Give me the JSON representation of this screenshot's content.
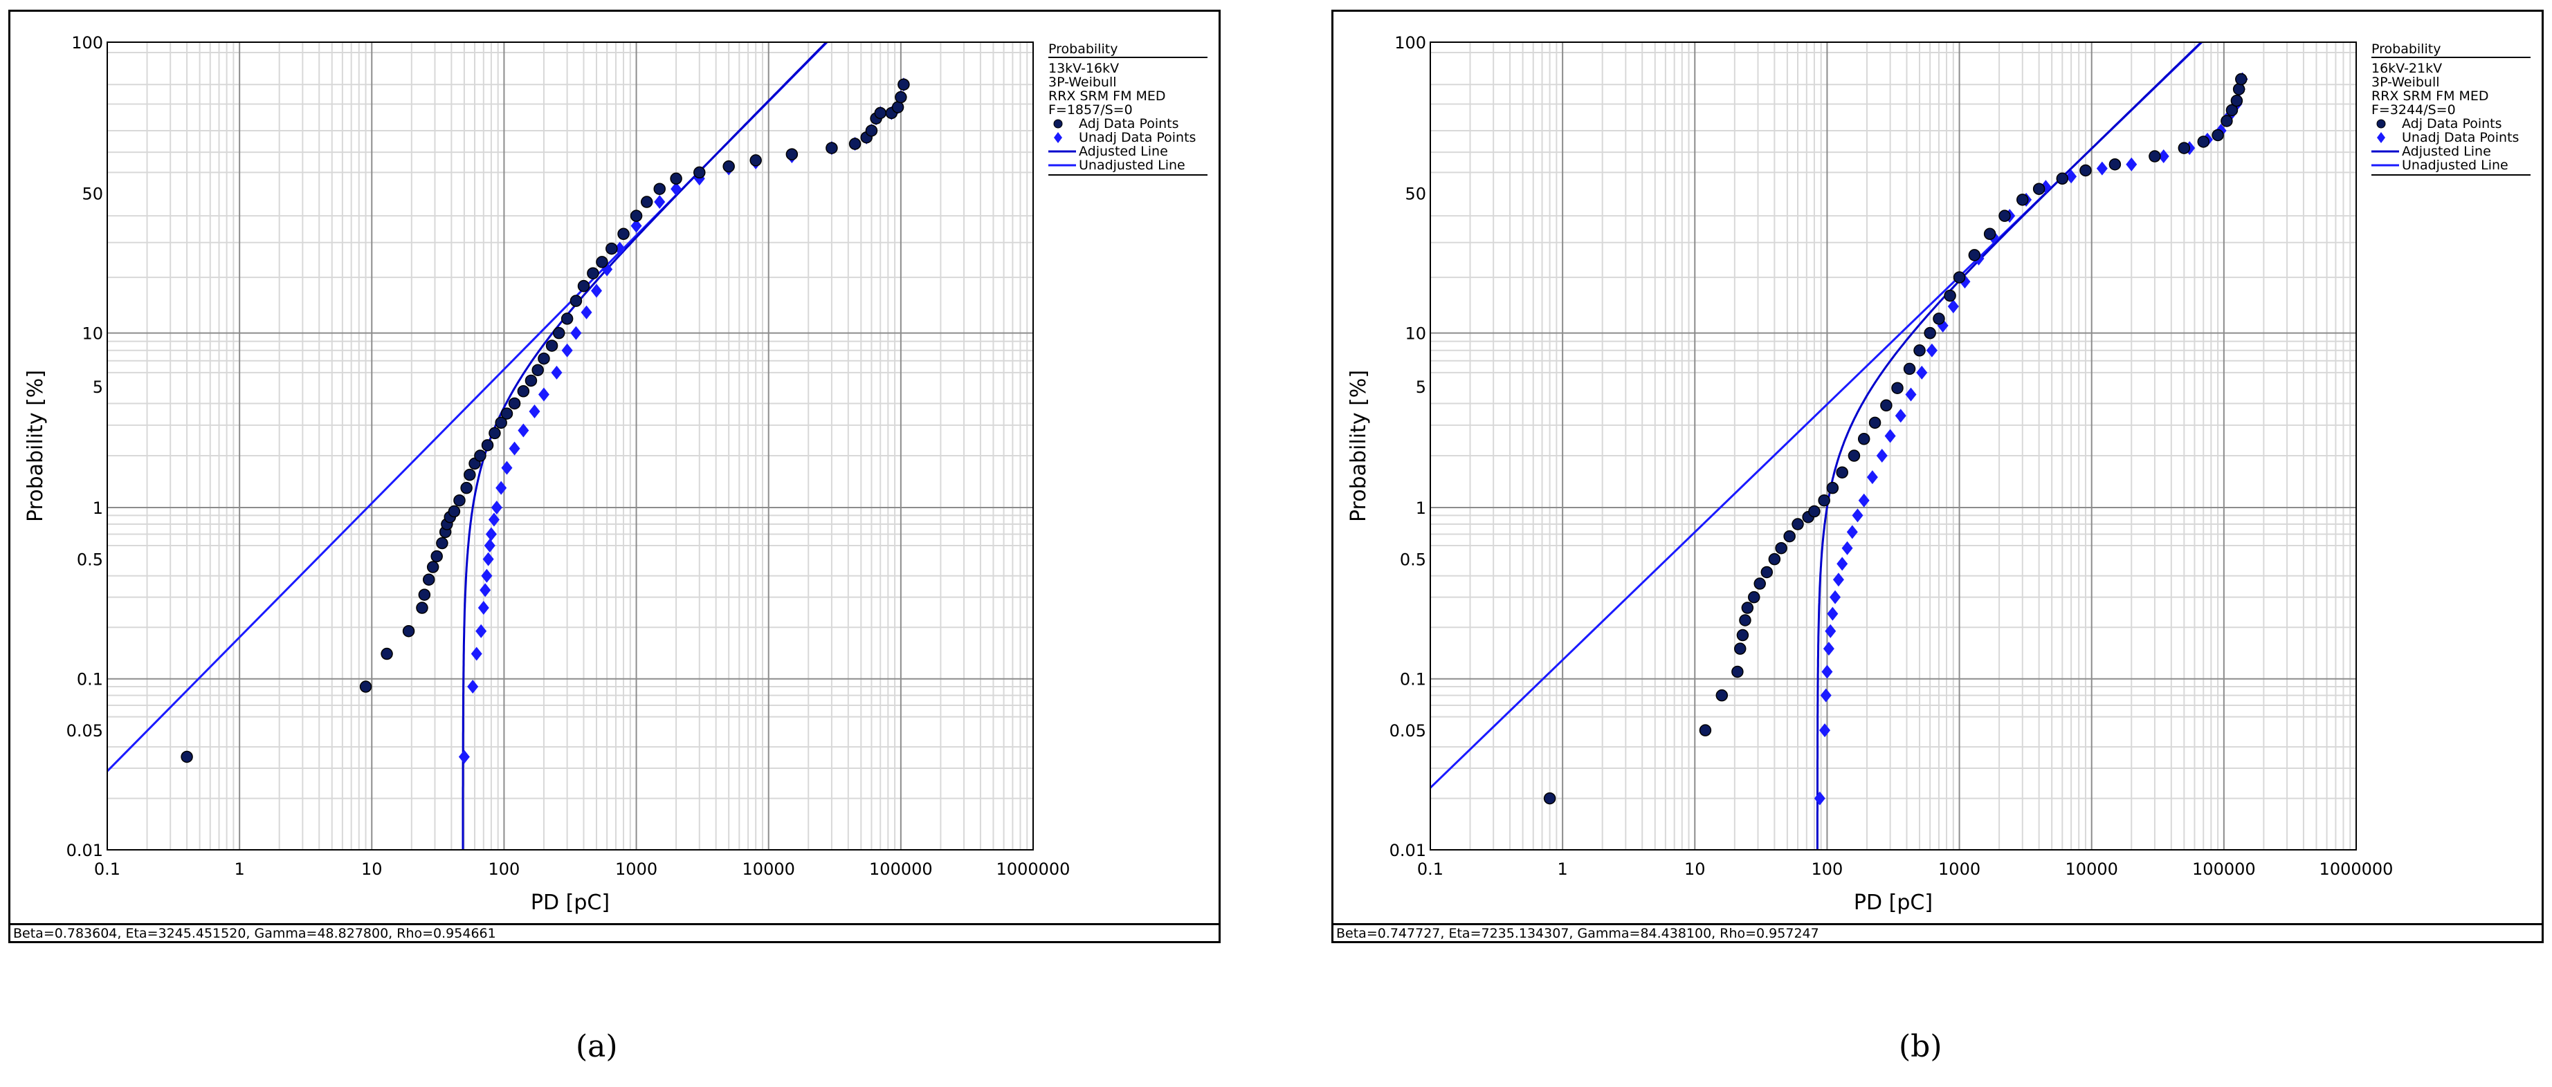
{
  "chart_data": [
    {
      "type": "scatter",
      "panel_caption": "(a)",
      "xlabel": "PD [pC]",
      "ylabel": "Probability [%]",
      "x_scale": "log",
      "y_scale": "weibull",
      "xlim": [
        0.1,
        1000000
      ],
      "ylim": [
        0.01,
        100
      ],
      "x_ticks": [
        "0.1",
        "1",
        "10",
        "100",
        "1000",
        "10000",
        "100000",
        "1000000"
      ],
      "y_ticks": [
        "0.01",
        "0.05",
        "0.1",
        "0.5",
        "1",
        "5",
        "10",
        "50",
        "100"
      ],
      "grid": true,
      "legend_position": "right",
      "legend": {
        "title": "Probability",
        "lines": [
          "13kV-16kV",
          "3P-Weibull",
          "RRX SRM FM MED",
          "F=1857/S=0"
        ],
        "entries": [
          "Adj Data Points",
          "Unadj Data Points",
          "Adjusted Line",
          "Unadjusted Line"
        ]
      },
      "params_text": "Beta=0.783604, Eta=3245.451520, Gamma=48.827800, Rho=0.954661",
      "beta": 0.783604,
      "eta": 3245.45152,
      "gamma": 48.8278,
      "series": [
        {
          "name": "Adj Data Points",
          "marker": "circle",
          "points": [
            [
              0.4,
              0.035
            ],
            [
              9,
              0.09
            ],
            [
              13,
              0.14
            ],
            [
              19,
              0.19
            ],
            [
              24,
              0.26
            ],
            [
              25,
              0.31
            ],
            [
              27,
              0.38
            ],
            [
              29,
              0.45
            ],
            [
              31,
              0.52
            ],
            [
              34,
              0.62
            ],
            [
              36,
              0.72
            ],
            [
              37,
              0.8
            ],
            [
              39,
              0.88
            ],
            [
              42,
              0.95
            ],
            [
              46,
              1.1
            ],
            [
              52,
              1.3
            ],
            [
              55,
              1.55
            ],
            [
              60,
              1.8
            ],
            [
              66,
              2.0
            ],
            [
              75,
              2.3
            ],
            [
              85,
              2.7
            ],
            [
              95,
              3.1
            ],
            [
              105,
              3.5
            ],
            [
              120,
              4.0
            ],
            [
              140,
              4.7
            ],
            [
              160,
              5.4
            ],
            [
              180,
              6.2
            ],
            [
              200,
              7.2
            ],
            [
              230,
              8.5
            ],
            [
              260,
              10
            ],
            [
              300,
              12
            ],
            [
              350,
              15
            ],
            [
              400,
              18
            ],
            [
              470,
              21
            ],
            [
              550,
              24
            ],
            [
              650,
              28
            ],
            [
              800,
              33
            ],
            [
              1000,
              40
            ],
            [
              1200,
              46
            ],
            [
              1500,
              52
            ],
            [
              2000,
              57
            ],
            [
              3000,
              60
            ],
            [
              5000,
              63
            ],
            [
              8000,
              66
            ],
            [
              15000,
              69
            ],
            [
              30000,
              72
            ],
            [
              45000,
              74
            ],
            [
              55000,
              77
            ],
            [
              60000,
              80
            ],
            [
              65000,
              85
            ],
            [
              70000,
              87
            ],
            [
              85000,
              87
            ],
            [
              95000,
              89
            ],
            [
              100000,
              92
            ],
            [
              105000,
              95
            ]
          ]
        },
        {
          "name": "Unadj Data Points",
          "marker": "diamond",
          "points": [
            [
              50,
              0.035
            ],
            [
              58,
              0.09
            ],
            [
              62,
              0.14
            ],
            [
              67,
              0.19
            ],
            [
              70,
              0.26
            ],
            [
              72,
              0.33
            ],
            [
              74,
              0.4
            ],
            [
              76,
              0.5
            ],
            [
              78,
              0.6
            ],
            [
              80,
              0.7
            ],
            [
              84,
              0.85
            ],
            [
              88,
              1.0
            ],
            [
              95,
              1.3
            ],
            [
              105,
              1.7
            ],
            [
              120,
              2.2
            ],
            [
              140,
              2.8
            ],
            [
              170,
              3.6
            ],
            [
              200,
              4.5
            ],
            [
              250,
              6.0
            ],
            [
              300,
              8.0
            ],
            [
              350,
              10
            ],
            [
              420,
              13
            ],
            [
              500,
              17
            ],
            [
              600,
              22
            ],
            [
              750,
              28
            ],
            [
              1000,
              36
            ],
            [
              1500,
              46
            ],
            [
              2000,
              52
            ],
            [
              3000,
              57
            ],
            [
              5000,
              62
            ],
            [
              8000,
              65
            ],
            [
              15000,
              68
            ],
            [
              30000,
              72
            ],
            [
              45000,
              74
            ],
            [
              55000,
              77
            ],
            [
              60000,
              80
            ],
            [
              65000,
              85
            ],
            [
              70000,
              87
            ],
            [
              85000,
              87
            ],
            [
              95000,
              89
            ],
            [
              100000,
              92
            ],
            [
              105000,
              95
            ]
          ]
        }
      ]
    },
    {
      "type": "scatter",
      "panel_caption": "(b)",
      "xlabel": "PD [pC]",
      "ylabel": "Probability [%]",
      "x_scale": "log",
      "y_scale": "weibull",
      "xlim": [
        0.1,
        1000000
      ],
      "ylim": [
        0.01,
        100
      ],
      "x_ticks": [
        "0.1",
        "1",
        "10",
        "100",
        "1000",
        "10000",
        "100000",
        "1000000"
      ],
      "y_ticks": [
        "0.01",
        "0.05",
        "0.1",
        "0.5",
        "1",
        "5",
        "10",
        "50",
        "100"
      ],
      "grid": true,
      "legend_position": "right",
      "legend": {
        "title": "Probability",
        "lines": [
          "16kV-21kV",
          "3P-Weibull",
          "RRX SRM FM MED",
          "F=3244/S=0"
        ],
        "entries": [
          "Adj Data Points",
          "Unadj Data Points",
          "Adjusted Line",
          "Unadjusted Line"
        ]
      },
      "params_text": "Beta=0.747727, Eta=7235.134307, Gamma=84.438100, Rho=0.957247",
      "beta": 0.747727,
      "eta": 7235.134307,
      "gamma": 84.4381,
      "series": [
        {
          "name": "Adj Data Points",
          "marker": "circle",
          "points": [
            [
              0.8,
              0.02
            ],
            [
              12,
              0.05
            ],
            [
              16,
              0.08
            ],
            [
              21,
              0.11
            ],
            [
              22,
              0.15
            ],
            [
              23,
              0.18
            ],
            [
              24,
              0.22
            ],
            [
              25,
              0.26
            ],
            [
              28,
              0.3
            ],
            [
              31,
              0.36
            ],
            [
              35,
              0.42
            ],
            [
              40,
              0.5
            ],
            [
              45,
              0.58
            ],
            [
              52,
              0.68
            ],
            [
              60,
              0.8
            ],
            [
              72,
              0.88
            ],
            [
              80,
              0.95
            ],
            [
              95,
              1.1
            ],
            [
              110,
              1.3
            ],
            [
              130,
              1.6
            ],
            [
              160,
              2.0
            ],
            [
              190,
              2.5
            ],
            [
              230,
              3.1
            ],
            [
              280,
              3.9
            ],
            [
              340,
              4.9
            ],
            [
              420,
              6.3
            ],
            [
              500,
              8.0
            ],
            [
              600,
              10
            ],
            [
              700,
              12
            ],
            [
              850,
              16
            ],
            [
              1000,
              20
            ],
            [
              1300,
              26
            ],
            [
              1700,
              33
            ],
            [
              2200,
              40
            ],
            [
              3000,
              47
            ],
            [
              4000,
              52
            ],
            [
              6000,
              57
            ],
            [
              9000,
              61
            ],
            [
              15000,
              64
            ],
            [
              30000,
              68
            ],
            [
              50000,
              72
            ],
            [
              70000,
              75
            ],
            [
              90000,
              78
            ],
            [
              105000,
              84
            ],
            [
              115000,
              88
            ],
            [
              125000,
              91
            ],
            [
              130000,
              94
            ],
            [
              135000,
              96
            ]
          ]
        },
        {
          "name": "Unadj Data Points",
          "marker": "diamond",
          "points": [
            [
              88,
              0.02
            ],
            [
              96,
              0.05
            ],
            [
              98,
              0.08
            ],
            [
              100,
              0.11
            ],
            [
              103,
              0.15
            ],
            [
              106,
              0.19
            ],
            [
              110,
              0.24
            ],
            [
              115,
              0.3
            ],
            [
              122,
              0.38
            ],
            [
              130,
              0.47
            ],
            [
              142,
              0.58
            ],
            [
              155,
              0.72
            ],
            [
              170,
              0.9
            ],
            [
              190,
              1.1
            ],
            [
              220,
              1.5
            ],
            [
              260,
              2.0
            ],
            [
              300,
              2.6
            ],
            [
              360,
              3.4
            ],
            [
              430,
              4.5
            ],
            [
              520,
              6.0
            ],
            [
              620,
              8.0
            ],
            [
              750,
              11
            ],
            [
              900,
              14
            ],
            [
              1100,
              19
            ],
            [
              1400,
              25
            ],
            [
              1800,
              32
            ],
            [
              2400,
              40
            ],
            [
              3200,
              47
            ],
            [
              4500,
              53
            ],
            [
              7000,
              58
            ],
            [
              12000,
              62
            ],
            [
              20000,
              64
            ],
            [
              35000,
              68
            ],
            [
              55000,
              72
            ],
            [
              75000,
              76
            ],
            [
              95000,
              80
            ],
            [
              110000,
              86
            ],
            [
              125000,
              90
            ],
            [
              132000,
              94
            ],
            [
              138000,
              96
            ]
          ]
        }
      ]
    }
  ],
  "colors": {
    "adjusted": "#0000cc",
    "adj_marker_fill": "#0b1a5c",
    "unadjusted": "#1a1aff",
    "grid_major": "#8c8c8c",
    "grid_minor": "#d8d8d8"
  }
}
